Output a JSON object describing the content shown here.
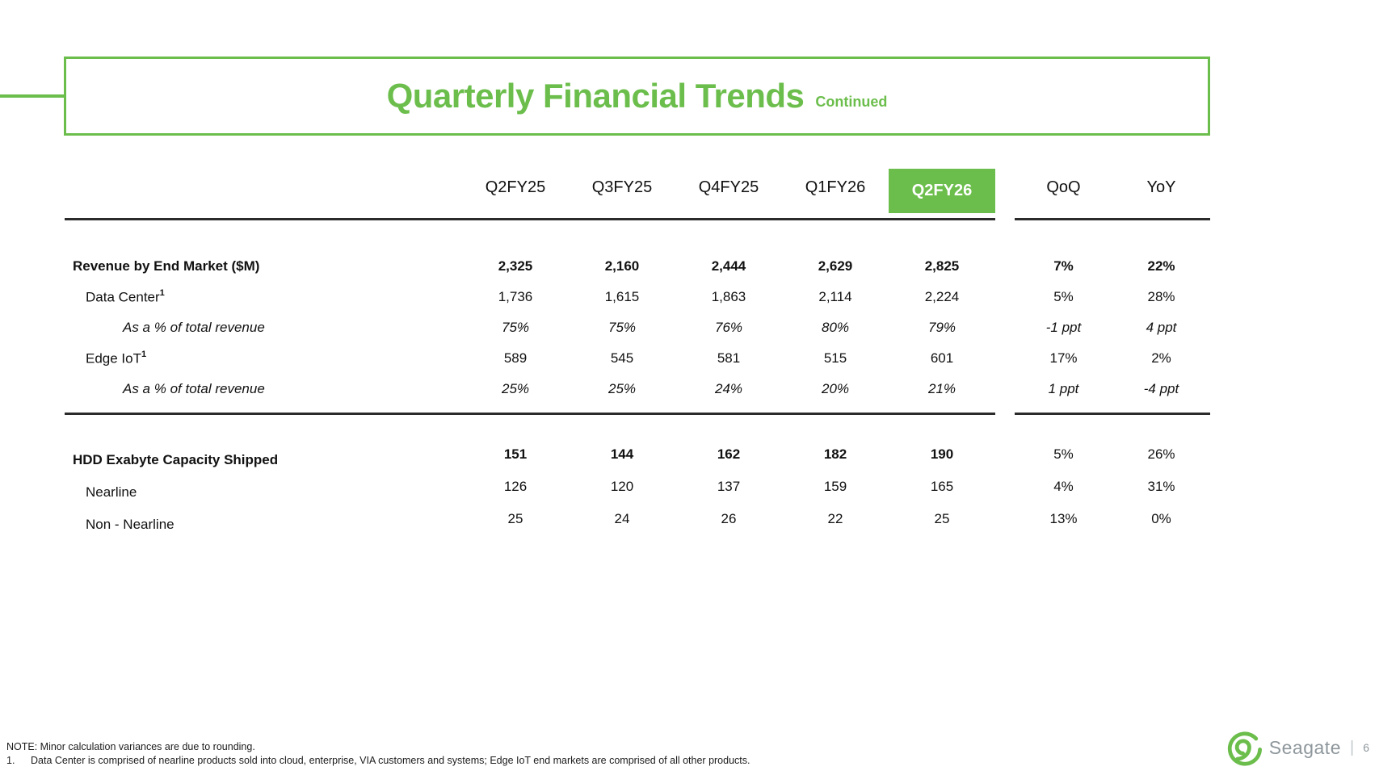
{
  "title": {
    "main": "Quarterly Financial Trends",
    "suffix": "Continued"
  },
  "table": {
    "columns": [
      "Q2FY25",
      "Q3FY25",
      "Q4FY25",
      "Q1FY26",
      "Q2FY26",
      "QoQ",
      "YoY"
    ],
    "highlighted_column": "Q2FY26",
    "sections": [
      {
        "rows": [
          {
            "label": "Revenue by End Market ($M)",
            "sup": "",
            "indent": 0,
            "label_style": "bold",
            "bold_quarters": true,
            "bold_change": true,
            "italic": false,
            "values": [
              "2,325",
              "2,160",
              "2,444",
              "2,629",
              "2,825",
              "7%",
              "22%"
            ]
          },
          {
            "label": "Data Center",
            "sup": "1",
            "indent": 1,
            "label_style": "normal",
            "bold_quarters": false,
            "bold_change": false,
            "italic": false,
            "values": [
              "1,736",
              "1,615",
              "1,863",
              "2,114",
              "2,224",
              "5%",
              "28%"
            ]
          },
          {
            "label": "As a % of total revenue",
            "sup": "",
            "indent": 2,
            "label_style": "italic",
            "bold_quarters": false,
            "bold_change": false,
            "italic": true,
            "values": [
              "75%",
              "75%",
              "76%",
              "80%",
              "79%",
              "-1 ppt",
              "4 ppt"
            ]
          },
          {
            "label": "Edge IoT",
            "sup": "1",
            "indent": 1,
            "label_style": "normal",
            "bold_quarters": false,
            "bold_change": false,
            "italic": false,
            "values": [
              "589",
              "545",
              "581",
              "515",
              "601",
              "17%",
              "2%"
            ]
          },
          {
            "label": "As a % of total revenue",
            "sup": "",
            "indent": 2,
            "label_style": "italic",
            "bold_quarters": false,
            "bold_change": false,
            "italic": true,
            "values": [
              "25%",
              "25%",
              "24%",
              "20%",
              "21%",
              "1 ppt",
              "-4 ppt"
            ]
          }
        ]
      },
      {
        "rows": [
          {
            "label": "HDD Exabyte Capacity Shipped",
            "sup": "",
            "indent": 0,
            "label_style": "bold",
            "bold_quarters": true,
            "bold_change": false,
            "italic": false,
            "values": [
              "151",
              "144",
              "162",
              "182",
              "190",
              "5%",
              "26%"
            ]
          },
          {
            "label": "Nearline",
            "sup": "",
            "indent": 1,
            "label_style": "normal",
            "bold_quarters": false,
            "bold_change": false,
            "italic": false,
            "values": [
              "126",
              "120",
              "137",
              "159",
              "165",
              "4%",
              "31%"
            ]
          },
          {
            "label": "Non - Nearline",
            "sup": "",
            "indent": 1,
            "label_style": "normal",
            "bold_quarters": false,
            "bold_change": false,
            "italic": false,
            "values": [
              "25",
              "24",
              "26",
              "22",
              "25",
              "13%",
              "0%"
            ]
          }
        ]
      }
    ]
  },
  "footer": {
    "note": "NOTE: Minor calculation variances are due to rounding.",
    "footnote_number": "1.",
    "footnote_text": "Data Center is comprised of nearline products sold into cloud, enterprise, VIA customers and systems; Edge IoT end markets are comprised of all other products.",
    "brand": "Seagate",
    "separator": "|",
    "page_number": "6"
  },
  "colors": {
    "accent_green": "#6CBE4C",
    "rule_dark": "#2B2B2B",
    "text": "#111111",
    "brand_gray": "#8E979C"
  }
}
